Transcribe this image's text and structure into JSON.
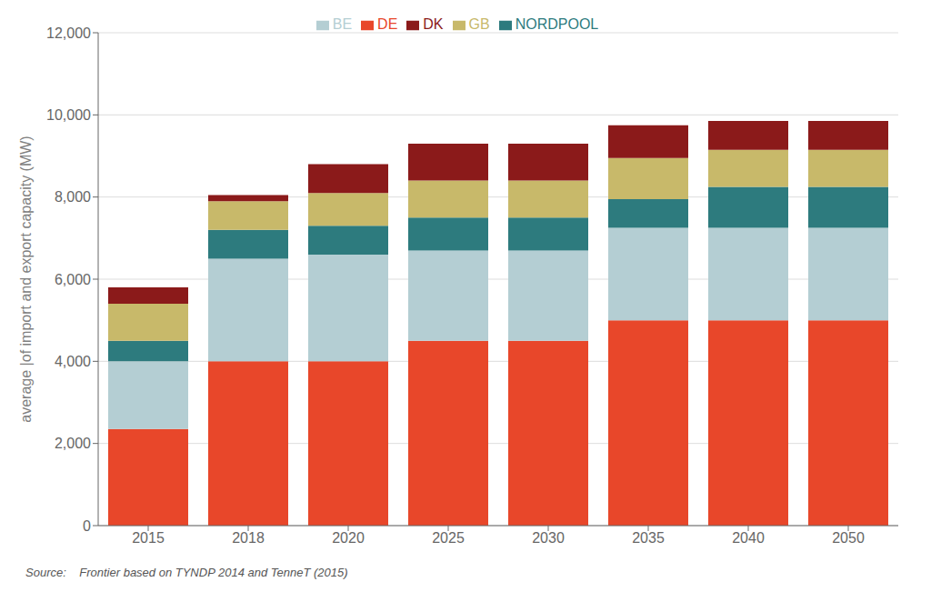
{
  "chart_data": {
    "type": "bar",
    "stacked": true,
    "categories": [
      "2015",
      "2018",
      "2020",
      "2025",
      "2030",
      "2035",
      "2040",
      "2050"
    ],
    "series": [
      {
        "name": "DE",
        "color": "#e8472a",
        "values": [
          2350,
          4000,
          4000,
          4500,
          4500,
          5000,
          5000,
          5000
        ]
      },
      {
        "name": "BE",
        "color": "#b4ced3",
        "values": [
          1650,
          2500,
          2600,
          2200,
          2200,
          2250,
          2250,
          2250
        ]
      },
      {
        "name": "NORDPOOL",
        "color": "#2d7b7e",
        "values": [
          500,
          700,
          700,
          800,
          800,
          700,
          1000,
          1000
        ]
      },
      {
        "name": "GB",
        "color": "#c8b96a",
        "values": [
          900,
          700,
          800,
          900,
          900,
          1000,
          900,
          900
        ]
      },
      {
        "name": "DK",
        "color": "#8b1a1a",
        "values": [
          400,
          150,
          700,
          900,
          900,
          800,
          700,
          700
        ]
      }
    ],
    "ylabel": "average |of import and export capacity (MW)",
    "ylim": [
      0,
      12000
    ],
    "yticks": [
      0,
      {
        "value": 2000,
        "label": "2,000"
      },
      {
        "value": 4000,
        "label": "4,000"
      },
      {
        "value": 6000,
        "label": "6,000"
      },
      {
        "value": 8000,
        "label": "8,000"
      },
      {
        "value": 10000,
        "label": "10,000"
      },
      {
        "value": 12000,
        "label": "12,000"
      }
    ],
    "grid": true,
    "legend": "top",
    "annotations": [
      "Source:    Frontier based on TYNDP 2014 and TenneT (2015)"
    ]
  }
}
